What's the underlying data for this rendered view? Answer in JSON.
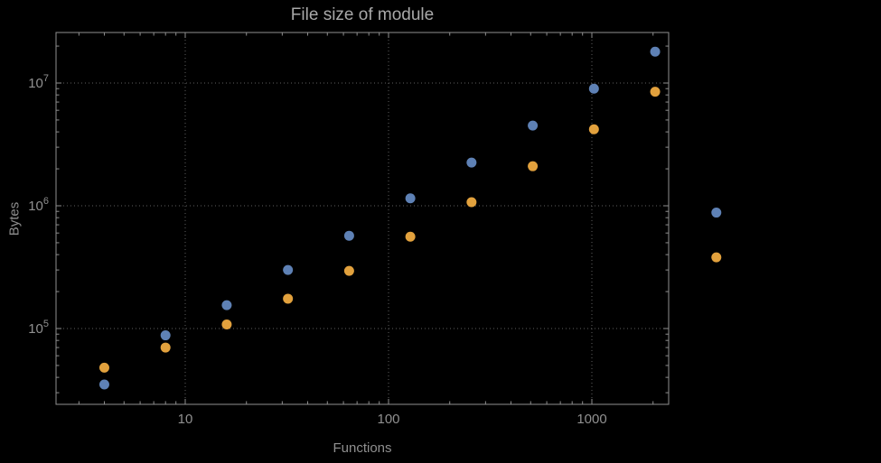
{
  "chart_data": {
    "type": "scatter",
    "title": "File size of module",
    "xlabel": "Functions",
    "ylabel": "Bytes",
    "x_scale": "log",
    "y_scale": "log",
    "grid": "dotted major gridlines on",
    "legend": "none",
    "frame_color": "#8f8f8f",
    "grid_color": "#5f5f5f",
    "background_color": "#000000",
    "x_ticks": [
      {
        "label": "10",
        "value": 10
      },
      {
        "label": "100",
        "value": 100
      },
      {
        "label": "1000",
        "value": 1000
      }
    ],
    "y_ticks": [
      {
        "base": "10",
        "exponent": "5",
        "value": 100000
      },
      {
        "base": "10",
        "exponent": "6",
        "value": 1000000
      },
      {
        "base": "10",
        "exponent": "7",
        "value": 10000000
      }
    ],
    "x_range_displayed": [
      2.5,
      2500
    ],
    "y_range_displayed": [
      26000,
      25000000
    ],
    "series": [
      {
        "name": "series1-blue",
        "color": "#5e81b5",
        "points": [
          [
            4,
            35000
          ],
          [
            8,
            88000
          ],
          [
            16,
            155000
          ],
          [
            32,
            300000
          ],
          [
            64,
            570000
          ],
          [
            128,
            1150000
          ],
          [
            256,
            2250000
          ],
          [
            512,
            4500000
          ],
          [
            1024,
            9000000
          ],
          [
            2048,
            18000000
          ],
          [
            4096,
            880000
          ]
        ]
      },
      {
        "name": "series2-orange",
        "color": "#e2a13d",
        "points": [
          [
            4,
            48000
          ],
          [
            8,
            70000
          ],
          [
            16,
            108000
          ],
          [
            32,
            175000
          ],
          [
            64,
            295000
          ],
          [
            128,
            560000
          ],
          [
            256,
            1070000
          ],
          [
            512,
            2100000
          ],
          [
            1024,
            4200000
          ],
          [
            2048,
            8500000
          ],
          [
            4096,
            380000
          ]
        ]
      }
    ]
  }
}
